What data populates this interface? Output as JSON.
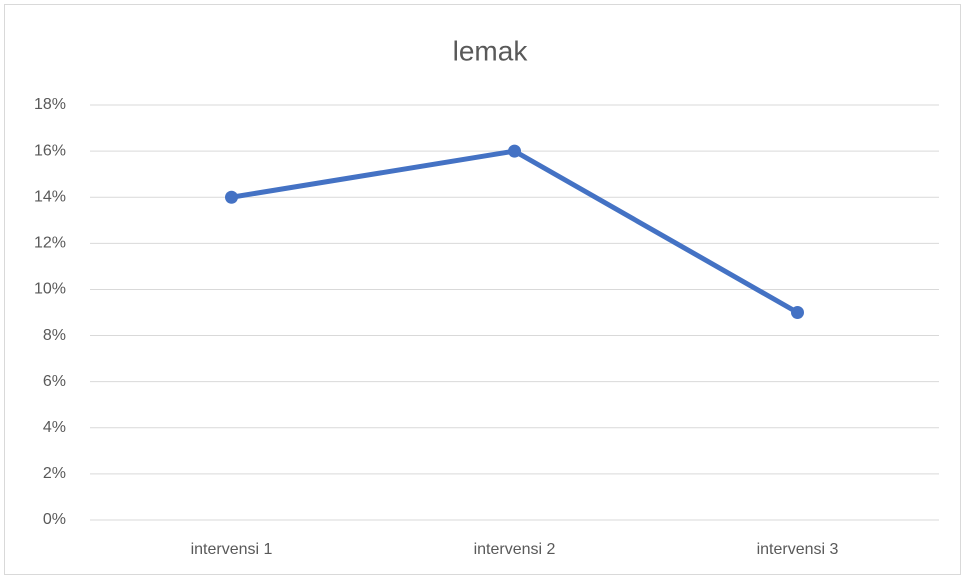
{
  "chart_data": {
    "type": "line",
    "title": "lemak",
    "categories": [
      "intervensi 1",
      "intervensi 2",
      "intervensi 3"
    ],
    "values": [
      14,
      16,
      9
    ],
    "color": "#4472c4",
    "ylim": [
      0,
      18
    ],
    "yticks": [
      {
        "value": 0,
        "label": "0%"
      },
      {
        "value": 2,
        "label": "2%"
      },
      {
        "value": 4,
        "label": "4%"
      },
      {
        "value": 6,
        "label": "6%"
      },
      {
        "value": 8,
        "label": "8%"
      },
      {
        "value": 10,
        "label": "10%"
      },
      {
        "value": 12,
        "label": "12%"
      },
      {
        "value": 14,
        "label": "14%"
      },
      {
        "value": 16,
        "label": "16%"
      },
      {
        "value": 18,
        "label": "18%"
      }
    ],
    "grid": true
  }
}
